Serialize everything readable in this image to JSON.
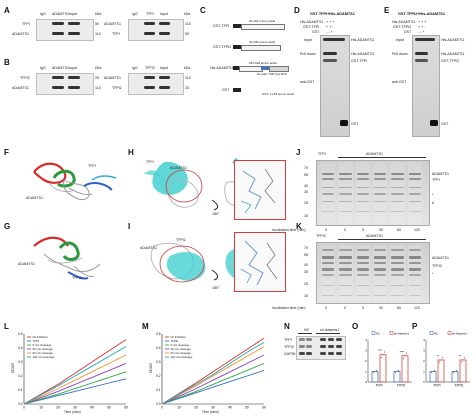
{
  "panels": {
    "A": {
      "label": "A",
      "left": {
        "lanes": [
          "IgG",
          "ADAMTS1",
          "Input"
        ],
        "unit": "kDa",
        "rows": [
          {
            "name": "TFPI",
            "kda": "50"
          },
          {
            "name": "ADAMTS1",
            "kda": "110"
          }
        ]
      },
      "right": {
        "lanes": [
          "IgG",
          "TFPI",
          "Input"
        ],
        "unit": "kDa",
        "rows": [
          {
            "name": "ADAMTS1",
            "kda": "110"
          },
          {
            "name": "TFPI",
            "kda": "50"
          }
        ]
      }
    },
    "B": {
      "label": "B",
      "left": {
        "lanes": [
          "IgG",
          "ADAMTS1",
          "Input"
        ],
        "unit": "kDa",
        "rows": [
          {
            "name": "TFPI2",
            "kda": "25"
          },
          {
            "name": "ADAMTS1",
            "kda": "110"
          }
        ]
      },
      "right": {
        "lanes": [
          "IgG",
          "TFPI2",
          "Input"
        ],
        "unit": "kDa",
        "rows": [
          {
            "name": "ADAMTS1",
            "kda": "110"
          },
          {
            "name": "TFPI2",
            "kda": "25"
          }
        ]
      }
    },
    "C": {
      "label": "C",
      "constructs": [
        {
          "name": "GST-TFPI",
          "range": "29-304 amino acids"
        },
        {
          "name": "GST-TFPI2",
          "range": "23-235 amino acids"
        },
        {
          "name": "His-ADAMTS1",
          "range": "252-618 amino acids",
          "sub": "Domain TSR   Cys-Rich"
        },
        {
          "name": "GST",
          "range": "GST: 1-218 amino acids"
        }
      ]
    },
    "D": {
      "label": "D",
      "title": "GST-TFPI+His-ADAMTS1",
      "rows": [
        {
          "name": "His-ADAMTS1",
          "vals": "+  +  +"
        },
        {
          "name": "GST-TFPI",
          "vals": "+  +  -"
        },
        {
          "name": "GST",
          "vals": "-  -  +"
        }
      ],
      "sections": [
        "Input",
        "Pull down"
      ],
      "right_labels": [
        "His-ADAMTS1",
        "His-ADAMTS1",
        "GST-TFPI",
        "GST"
      ],
      "probe": "anti-GST"
    },
    "E": {
      "label": "E",
      "title": "GST-TFPI2+His-ADAMTS1",
      "rows": [
        {
          "name": "His-ADAMTS1",
          "vals": "+  +  +"
        },
        {
          "name": "GST-TFPI2",
          "vals": "+  +  -"
        },
        {
          "name": "GST",
          "vals": "-  -  +"
        }
      ],
      "sections": [
        "Input",
        "Pull down"
      ],
      "right_labels": [
        "His-ADAMTS1",
        "His-ADAMTS1",
        "GST-TFPI2",
        "GST"
      ],
      "probe": "anti-GST"
    },
    "F": {
      "label": "F",
      "tags": [
        "TFPI",
        "ADAMTS1"
      ]
    },
    "G": {
      "label": "G",
      "tags": [
        "ADAMTS1",
        "TFPI2"
      ]
    },
    "H": {
      "label": "H",
      "tags": [
        "ADAMTS1",
        "TFPI",
        "180°"
      ]
    },
    "I": {
      "label": "I",
      "tags": [
        "ADAMTS1",
        "TFPI2",
        "180°"
      ]
    },
    "J": {
      "label": "J",
      "lane_label": "TFPI",
      "group_label": "ADAMTS1",
      "kda": [
        "70",
        "55",
        "40",
        "35",
        "25",
        "15"
      ],
      "right_labels": [
        "ADAMTS1",
        "TFPI",
        "*",
        "#"
      ],
      "time_label": "Incubation time (min)",
      "times": [
        "0",
        "0",
        "5",
        "30",
        "60",
        "120"
      ]
    },
    "K": {
      "label": "K",
      "lane_label": "TFPI2",
      "group_label": "ADAMTS1",
      "kda": [
        "70",
        "55",
        "40",
        "35",
        "25",
        "15"
      ],
      "right_labels": [
        "ADAMTS1",
        "TFPI2",
        "*"
      ],
      "time_label": "Incubation time (min)",
      "times": [
        "0",
        "0",
        "5",
        "30",
        "60",
        "120"
      ]
    },
    "L": {
      "label": "L",
      "ylabel": "OD405",
      "xlabel": "Time (mins)"
    },
    "M": {
      "label": "M",
      "ylabel": "OD405",
      "xlabel": "Time (mins)"
    },
    "N": {
      "label": "N",
      "groups": [
        "NC",
        "sh-Adamts1"
      ],
      "rows": [
        "TFPI",
        "TFPI2",
        "GAPDH"
      ]
    },
    "O": {
      "label": "O",
      "legend": [
        "NC",
        "sh-Adamts1"
      ],
      "sig": [
        "****",
        "****"
      ],
      "xcats": [
        "TFPI",
        "TFPI2"
      ]
    },
    "P": {
      "label": "P",
      "legend": [
        "NC",
        "sh-Adamts1"
      ],
      "sig": [
        "**",
        "**"
      ],
      "xcats": [
        "TFPI",
        "TFPI2"
      ]
    }
  },
  "chart_data": [
    {
      "type": "line",
      "title": "",
      "xlabel": "Time (mins)",
      "ylabel": "OD405",
      "xlim": [
        0,
        60
      ],
      "ylim": [
        0,
        0.5
      ],
      "x": [
        0,
        10,
        20,
        30,
        40,
        50,
        60
      ],
      "series": [
        {
          "name": "No inhibition",
          "color": "#e0312b",
          "values": [
            0,
            0.07,
            0.14,
            0.22,
            0.3,
            0.38,
            0.46
          ]
        },
        {
          "name": "TFPI",
          "color": "#2f6fd6",
          "values": [
            0,
            0.03,
            0.06,
            0.09,
            0.12,
            0.15,
            0.18
          ]
        },
        {
          "name": "5 min cleavage",
          "color": "#2ea84a",
          "values": [
            0,
            0.035,
            0.07,
            0.11,
            0.15,
            0.19,
            0.23
          ]
        },
        {
          "name": "30 min cleavage",
          "color": "#8a3fc8",
          "values": [
            0,
            0.045,
            0.09,
            0.14,
            0.19,
            0.24,
            0.29
          ]
        },
        {
          "name": "60 min cleavage",
          "color": "#f0902a",
          "values": [
            0,
            0.055,
            0.11,
            0.17,
            0.23,
            0.29,
            0.35
          ]
        },
        {
          "name": "120 min cleavage",
          "color": "#1aa9b5",
          "values": [
            0,
            0.065,
            0.13,
            0.2,
            0.27,
            0.34,
            0.41
          ]
        }
      ]
    },
    {
      "type": "line",
      "title": "",
      "xlabel": "Time (mins)",
      "ylabel": "OD405",
      "xlim": [
        0,
        60
      ],
      "ylim": [
        0,
        0.5
      ],
      "x": [
        0,
        10,
        20,
        30,
        40,
        50,
        60
      ],
      "series": [
        {
          "name": "No inhibition",
          "color": "#e0312b",
          "values": [
            0,
            0.075,
            0.15,
            0.23,
            0.31,
            0.39,
            0.47
          ]
        },
        {
          "name": "TFPI2",
          "color": "#2f6fd6",
          "values": [
            0,
            0.04,
            0.08,
            0.12,
            0.16,
            0.2,
            0.24
          ]
        },
        {
          "name": "5 min cleavage",
          "color": "#2ea84a",
          "values": [
            0,
            0.045,
            0.09,
            0.14,
            0.19,
            0.24,
            0.29
          ]
        },
        {
          "name": "30 min cleavage",
          "color": "#8a3fc8",
          "values": [
            0,
            0.055,
            0.11,
            0.17,
            0.23,
            0.29,
            0.35
          ]
        },
        {
          "name": "60 min cleavage",
          "color": "#f0902a",
          "values": [
            0,
            0.065,
            0.13,
            0.2,
            0.27,
            0.34,
            0.41
          ]
        },
        {
          "name": "120 min cleavage",
          "color": "#1aa9b5",
          "values": [
            0,
            0.07,
            0.14,
            0.21,
            0.29,
            0.37,
            0.44
          ]
        }
      ]
    },
    {
      "type": "bar",
      "categories": [
        "TFPI",
        "TFPI2"
      ],
      "ylabel": "",
      "ylim": [
        0,
        4
      ],
      "series": [
        {
          "name": "NC",
          "color": "#4a72c8",
          "values": [
            1.0,
            1.0
          ]
        },
        {
          "name": "sh-Adamts1",
          "color": "#d8483d",
          "values": [
            2.6,
            2.5
          ]
        }
      ]
    },
    {
      "type": "bar",
      "categories": [
        "TFPI",
        "TFPI2"
      ],
      "ylabel": "",
      "ylim": [
        0,
        4
      ],
      "series": [
        {
          "name": "NC",
          "color": "#4a72c8",
          "values": [
            1.0,
            1.0
          ]
        },
        {
          "name": "sh-Adamts1",
          "color": "#d8483d",
          "values": [
            2.1,
            2.1
          ]
        }
      ]
    }
  ]
}
